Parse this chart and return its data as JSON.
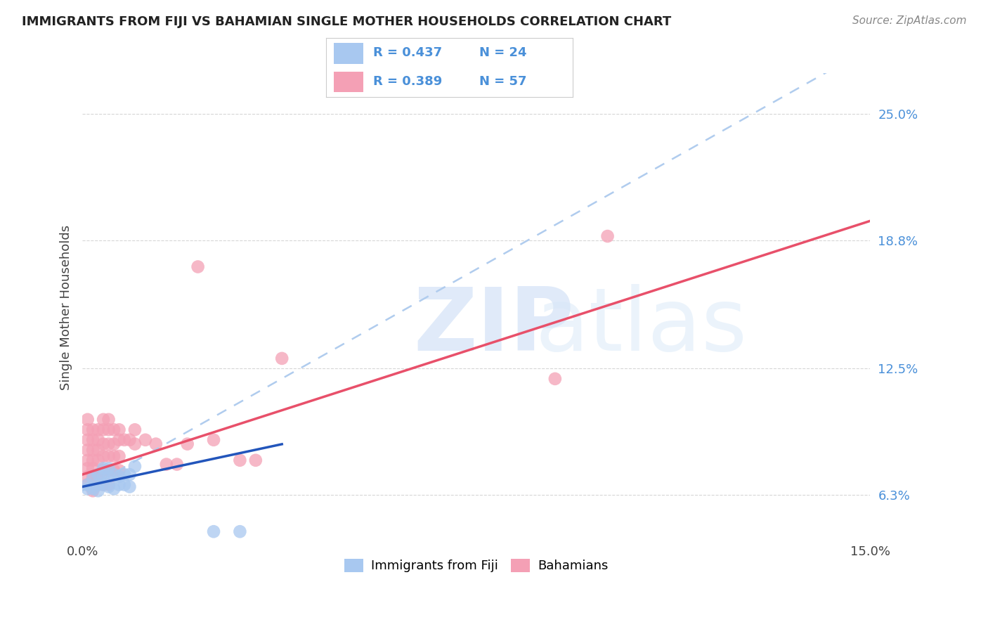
{
  "title": "IMMIGRANTS FROM FIJI VS BAHAMIAN SINGLE MOTHER HOUSEHOLDS CORRELATION CHART",
  "source": "Source: ZipAtlas.com",
  "ylabel": "Single Mother Households",
  "xlim": [
    0.0,
    0.15
  ],
  "ylim": [
    0.04,
    0.27
  ],
  "y_tick_vals": [
    0.063,
    0.125,
    0.188,
    0.25
  ],
  "x_tick_vals": [
    0.0,
    0.15
  ],
  "grid_color": "#cccccc",
  "watermark_zip": "ZIP",
  "watermark_atlas": "atlas",
  "fiji_color": "#a8c8f0",
  "fiji_edge": "#7aaad8",
  "bahamas_color": "#f4a0b5",
  "bahamas_edge": "#e87090",
  "fiji_R": 0.437,
  "fiji_N": 24,
  "bahamas_R": 0.389,
  "bahamas_N": 57,
  "fiji_line_color": "#2255bb",
  "bahamas_line_color": "#e8506a",
  "fiji_dashed_color": "#b0ccee",
  "fiji_points_x": [
    0.001,
    0.001,
    0.002,
    0.002,
    0.003,
    0.003,
    0.003,
    0.004,
    0.004,
    0.004,
    0.005,
    0.005,
    0.005,
    0.006,
    0.006,
    0.007,
    0.007,
    0.008,
    0.008,
    0.009,
    0.009,
    0.01,
    0.025,
    0.03
  ],
  "fiji_points_y": [
    0.068,
    0.066,
    0.066,
    0.071,
    0.065,
    0.068,
    0.073,
    0.068,
    0.072,
    0.076,
    0.067,
    0.072,
    0.076,
    0.066,
    0.073,
    0.068,
    0.072,
    0.068,
    0.073,
    0.067,
    0.073,
    0.077,
    0.045,
    0.045
  ],
  "bahamas_points_x": [
    0.001,
    0.001,
    0.001,
    0.001,
    0.001,
    0.001,
    0.001,
    0.001,
    0.002,
    0.002,
    0.002,
    0.002,
    0.002,
    0.002,
    0.002,
    0.003,
    0.003,
    0.003,
    0.003,
    0.003,
    0.003,
    0.004,
    0.004,
    0.004,
    0.004,
    0.004,
    0.004,
    0.005,
    0.005,
    0.005,
    0.005,
    0.005,
    0.005,
    0.006,
    0.006,
    0.006,
    0.006,
    0.007,
    0.007,
    0.007,
    0.007,
    0.008,
    0.009,
    0.01,
    0.01,
    0.012,
    0.014,
    0.016,
    0.018,
    0.02,
    0.022,
    0.025,
    0.03,
    0.033,
    0.038,
    0.09,
    0.1
  ],
  "bahamas_points_y": [
    0.068,
    0.072,
    0.076,
    0.08,
    0.085,
    0.09,
    0.095,
    0.1,
    0.065,
    0.072,
    0.076,
    0.08,
    0.085,
    0.09,
    0.095,
    0.068,
    0.072,
    0.08,
    0.085,
    0.09,
    0.095,
    0.068,
    0.075,
    0.082,
    0.088,
    0.095,
    0.1,
    0.068,
    0.075,
    0.082,
    0.088,
    0.095,
    0.1,
    0.075,
    0.082,
    0.088,
    0.095,
    0.075,
    0.082,
    0.09,
    0.095,
    0.09,
    0.09,
    0.088,
    0.095,
    0.09,
    0.088,
    0.078,
    0.078,
    0.088,
    0.175,
    0.09,
    0.08,
    0.08,
    0.13,
    0.12,
    0.19
  ],
  "fiji_line_x": [
    0.0,
    0.04
  ],
  "fiji_line_y_intercept": 0.067,
  "fiji_line_slope": 0.55,
  "bahamas_line_x": [
    0.0,
    0.15
  ],
  "bahamas_line_y_intercept": 0.073,
  "bahamas_line_slope": 0.83,
  "fiji_dash_slope": 1.45,
  "fiji_dash_intercept": 0.065
}
